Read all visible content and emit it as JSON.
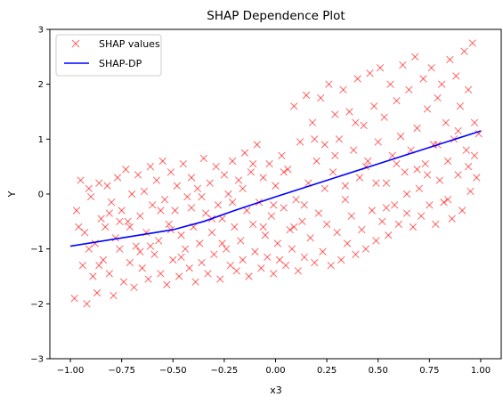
{
  "chart_data": {
    "type": "scatter",
    "title": "SHAP Dependence Plot",
    "xlabel": "x3",
    "ylabel": "Y",
    "xlim": [
      -1.1,
      1.1
    ],
    "ylim": [
      -3,
      3
    ],
    "xticks": [
      -1.0,
      -0.75,
      -0.5,
      -0.25,
      0.0,
      0.25,
      0.5,
      0.75,
      1.0
    ],
    "xtick_labels": [
      "−1.00",
      "−0.75",
      "−0.50",
      "−0.25",
      "0.00",
      "0.25",
      "0.50",
      "0.75",
      "1.00"
    ],
    "yticks": [
      -3,
      -2,
      -1,
      0,
      1,
      2,
      3
    ],
    "ytick_labels": [
      "−3",
      "−2",
      "−1",
      "0",
      "1",
      "2",
      "3"
    ],
    "grid": false,
    "legend_position": "top-left",
    "series": [
      {
        "name": "SHAP values",
        "kind": "scatter",
        "marker": "x",
        "color": "#ff0000",
        "alpha": 0.55,
        "points": [
          [
            -0.98,
            -1.9
          ],
          [
            -0.97,
            -0.3
          ],
          [
            -0.95,
            0.25
          ],
          [
            -0.94,
            -1.3
          ],
          [
            -0.93,
            -0.7
          ],
          [
            -0.92,
            -2.0
          ],
          [
            -0.91,
            0.1
          ],
          [
            -0.9,
            -0.05
          ],
          [
            -0.89,
            -1.5
          ],
          [
            -0.88,
            -0.9
          ],
          [
            -0.87,
            -1.8
          ],
          [
            -0.86,
            0.2
          ],
          [
            -0.85,
            -0.45
          ],
          [
            -0.84,
            -1.2
          ],
          [
            -0.83,
            -0.6
          ],
          [
            -0.82,
            0.15
          ],
          [
            -0.81,
            -1.45
          ],
          [
            -0.8,
            -0.15
          ],
          [
            -0.79,
            -1.85
          ],
          [
            -0.78,
            -0.8
          ],
          [
            -0.77,
            0.3
          ],
          [
            -0.76,
            -1.0
          ],
          [
            -0.75,
            -0.3
          ],
          [
            -0.74,
            -1.6
          ],
          [
            -0.73,
            0.45
          ],
          [
            -0.72,
            -0.5
          ],
          [
            -0.71,
            -1.25
          ],
          [
            -0.7,
            0.0
          ],
          [
            -0.69,
            -1.7
          ],
          [
            -0.68,
            -0.95
          ],
          [
            -0.67,
            0.35
          ],
          [
            -0.66,
            -0.4
          ],
          [
            -0.65,
            -1.35
          ],
          [
            -0.64,
            0.05
          ],
          [
            -0.63,
            -0.7
          ],
          [
            -0.62,
            -1.55
          ],
          [
            -0.61,
            0.5
          ],
          [
            -0.6,
            -0.2
          ],
          [
            -0.59,
            -1.1
          ],
          [
            -0.58,
            0.25
          ],
          [
            -0.57,
            -0.85
          ],
          [
            -0.56,
            -1.45
          ],
          [
            -0.55,
            0.6
          ],
          [
            -0.54,
            -0.1
          ],
          [
            -0.53,
            -1.65
          ],
          [
            -0.52,
            -0.55
          ],
          [
            -0.51,
            0.4
          ],
          [
            -0.5,
            -1.2
          ],
          [
            -0.49,
            -0.3
          ],
          [
            -0.48,
            0.15
          ],
          [
            -0.47,
            -1.5
          ],
          [
            -0.46,
            -0.75
          ],
          [
            -0.45,
            0.55
          ],
          [
            -0.44,
            -1.0
          ],
          [
            -0.43,
            -0.05
          ],
          [
            -0.42,
            -1.35
          ],
          [
            -0.41,
            0.3
          ],
          [
            -0.4,
            -0.6
          ],
          [
            -0.39,
            -1.6
          ],
          [
            -0.38,
            0.1
          ],
          [
            -0.37,
            -0.9
          ],
          [
            -0.36,
            -1.25
          ],
          [
            -0.35,
            0.65
          ],
          [
            -0.34,
            -0.35
          ],
          [
            -0.33,
            -1.45
          ],
          [
            -0.32,
            0.2
          ],
          [
            -0.31,
            -0.7
          ],
          [
            -0.3,
            -1.1
          ],
          [
            -0.29,
            0.5
          ],
          [
            -0.28,
            -0.2
          ],
          [
            -0.27,
            -1.55
          ],
          [
            -0.26,
            -0.45
          ],
          [
            -0.25,
            0.35
          ],
          [
            -0.24,
            -1.0
          ],
          [
            -0.23,
            0.0
          ],
          [
            -0.22,
            -1.3
          ],
          [
            -0.21,
            0.6
          ],
          [
            -0.2,
            -0.6
          ],
          [
            -0.19,
            -1.4
          ],
          [
            -0.18,
            0.25
          ],
          [
            -0.17,
            -0.85
          ],
          [
            -0.16,
            -1.2
          ],
          [
            -0.15,
            0.75
          ],
          [
            -0.14,
            -0.3
          ],
          [
            -0.13,
            -1.5
          ],
          [
            -0.12,
            0.4
          ],
          [
            -0.11,
            -0.55
          ],
          [
            -0.1,
            -1.05
          ],
          [
            -0.09,
            0.9
          ],
          [
            -0.08,
            -0.15
          ],
          [
            -0.07,
            -1.35
          ],
          [
            -0.06,
            0.3
          ],
          [
            -0.05,
            -0.75
          ],
          [
            -0.04,
            -1.15
          ],
          [
            -0.03,
            0.55
          ],
          [
            -0.02,
            -0.4
          ],
          [
            -0.01,
            -1.45
          ],
          [
            0.0,
            0.15
          ],
          [
            0.01,
            -0.9
          ],
          [
            0.02,
            -1.2
          ],
          [
            0.03,
            0.7
          ],
          [
            0.04,
            -0.25
          ],
          [
            0.05,
            -1.3
          ],
          [
            0.06,
            0.45
          ],
          [
            0.07,
            -0.65
          ],
          [
            0.08,
            -1.0
          ],
          [
            0.09,
            1.6
          ],
          [
            0.1,
            -0.1
          ],
          [
            0.11,
            -1.4
          ],
          [
            0.12,
            0.95
          ],
          [
            0.13,
            -0.5
          ],
          [
            0.14,
            -1.15
          ],
          [
            0.15,
            1.8
          ],
          [
            0.16,
            0.2
          ],
          [
            0.17,
            -0.8
          ],
          [
            0.18,
            1.3
          ],
          [
            0.19,
            -1.25
          ],
          [
            0.2,
            0.6
          ],
          [
            0.21,
            -0.35
          ],
          [
            0.22,
            1.75
          ],
          [
            0.23,
            -1.05
          ],
          [
            0.24,
            0.9
          ],
          [
            0.25,
            -0.55
          ],
          [
            0.26,
            2.0
          ],
          [
            0.27,
            -1.3
          ],
          [
            0.28,
            0.4
          ],
          [
            0.29,
            1.45
          ],
          [
            0.3,
            -0.7
          ],
          [
            0.31,
            1.0
          ],
          [
            0.32,
            -1.2
          ],
          [
            0.33,
            1.9
          ],
          [
            0.34,
            0.15
          ],
          [
            0.35,
            -0.9
          ],
          [
            0.36,
            1.5
          ],
          [
            0.37,
            -0.4
          ],
          [
            0.38,
            0.8
          ],
          [
            0.39,
            -1.1
          ],
          [
            0.4,
            2.1
          ],
          [
            0.41,
            0.3
          ],
          [
            0.42,
            -0.65
          ],
          [
            0.43,
            1.25
          ],
          [
            0.44,
            -1.0
          ],
          [
            0.45,
            0.6
          ],
          [
            0.46,
            2.2
          ],
          [
            0.47,
            -0.3
          ],
          [
            0.48,
            1.6
          ],
          [
            0.49,
            -0.85
          ],
          [
            0.5,
            0.95
          ],
          [
            0.51,
            2.3
          ],
          [
            0.52,
            -0.5
          ],
          [
            0.53,
            1.4
          ],
          [
            0.54,
            0.2
          ],
          [
            0.55,
            -0.75
          ],
          [
            0.56,
            2.0
          ],
          [
            0.57,
            0.7
          ],
          [
            0.58,
            -0.2
          ],
          [
            0.59,
            1.7
          ],
          [
            0.6,
            -0.55
          ],
          [
            0.61,
            1.05
          ],
          [
            0.62,
            2.35
          ],
          [
            0.63,
            0.4
          ],
          [
            0.64,
            -0.35
          ],
          [
            0.65,
            1.9
          ],
          [
            0.66,
            0.8
          ],
          [
            0.67,
            -0.6
          ],
          [
            0.68,
            2.5
          ],
          [
            0.69,
            1.2
          ],
          [
            0.7,
            0.1
          ],
          [
            0.71,
            -0.4
          ],
          [
            0.72,
            2.1
          ],
          [
            0.73,
            0.55
          ],
          [
            0.74,
            1.55
          ],
          [
            0.75,
            -0.2
          ],
          [
            0.76,
            2.3
          ],
          [
            0.77,
            0.9
          ],
          [
            0.78,
            -0.55
          ],
          [
            0.79,
            1.75
          ],
          [
            0.8,
            0.25
          ],
          [
            0.81,
            2.0
          ],
          [
            0.82,
            -0.15
          ],
          [
            0.83,
            1.3
          ],
          [
            0.84,
            0.6
          ],
          [
            0.85,
            2.45
          ],
          [
            0.86,
            -0.45
          ],
          [
            0.87,
            1.0
          ],
          [
            0.88,
            2.15
          ],
          [
            0.89,
            0.35
          ],
          [
            0.9,
            1.6
          ],
          [
            0.91,
            -0.3
          ],
          [
            0.92,
            2.6
          ],
          [
            0.93,
            0.8
          ],
          [
            0.94,
            1.9
          ],
          [
            0.95,
            0.05
          ],
          [
            0.96,
            2.75
          ],
          [
            0.97,
            1.3
          ],
          [
            0.98,
            0.3
          ],
          [
            0.99,
            1.1
          ],
          [
            -0.96,
            -0.6
          ],
          [
            -0.86,
            -1.3
          ],
          [
            -0.76,
            -0.5
          ],
          [
            -0.66,
            -1.05
          ],
          [
            -0.56,
            -0.3
          ],
          [
            -0.46,
            -1.15
          ],
          [
            -0.36,
            -0.05
          ],
          [
            -0.26,
            -0.9
          ],
          [
            -0.16,
            0.1
          ],
          [
            -0.06,
            -0.6
          ],
          [
            0.04,
            0.4
          ],
          [
            0.14,
            -0.2
          ],
          [
            0.24,
            0.1
          ],
          [
            0.34,
            -0.1
          ],
          [
            0.44,
            0.5
          ],
          [
            0.54,
            -0.25
          ],
          [
            0.64,
            0.0
          ],
          [
            0.74,
            0.35
          ],
          [
            0.84,
            -0.1
          ],
          [
            0.94,
            0.5
          ],
          [
            -0.91,
            -1.0
          ],
          [
            -0.81,
            -0.35
          ],
          [
            -0.71,
            -0.6
          ],
          [
            -0.61,
            -0.95
          ],
          [
            -0.51,
            -0.65
          ],
          [
            -0.41,
            -0.25
          ],
          [
            -0.31,
            -0.45
          ],
          [
            -0.21,
            -0.15
          ],
          [
            -0.11,
            0.55
          ],
          [
            -0.01,
            -0.2
          ],
          [
            0.09,
            -0.6
          ],
          [
            0.19,
            1.0
          ],
          [
            0.29,
            0.7
          ],
          [
            0.39,
            1.3
          ],
          [
            0.49,
            0.2
          ],
          [
            0.59,
            0.55
          ],
          [
            0.69,
            0.45
          ],
          [
            0.79,
            0.9
          ],
          [
            0.89,
            1.15
          ],
          [
            0.97,
            0.7
          ]
        ]
      },
      {
        "name": "SHAP-DP",
        "kind": "line",
        "color": "#0000ff",
        "points": [
          [
            -1.0,
            -0.95
          ],
          [
            -0.75,
            -0.8
          ],
          [
            -0.5,
            -0.65
          ],
          [
            -0.35,
            -0.5
          ],
          [
            -0.2,
            -0.3
          ],
          [
            0.0,
            -0.05
          ],
          [
            0.25,
            0.25
          ],
          [
            0.5,
            0.55
          ],
          [
            0.75,
            0.85
          ],
          [
            1.0,
            1.15
          ]
        ]
      }
    ]
  }
}
